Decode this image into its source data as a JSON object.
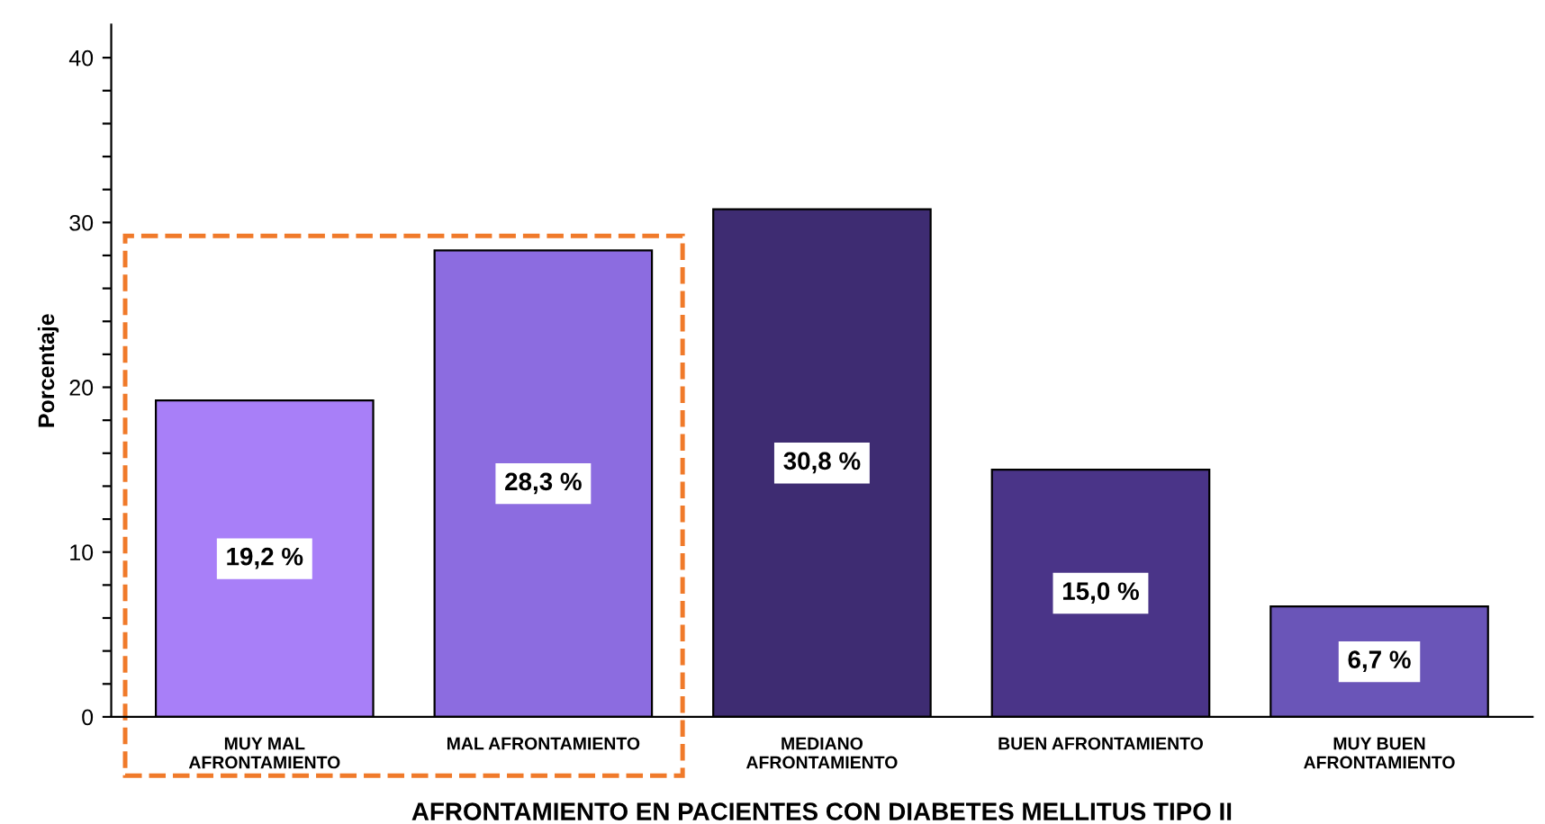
{
  "chart_data": {
    "type": "bar",
    "xlabel": "AFRONTAMIENTO EN PACIENTES CON DIABETES MELLITUS TIPO II",
    "ylabel": "Porcentaje",
    "categories": [
      "MUY MAL\nAFRONTAMIENTO",
      "MAL AFRONTAMIENTO",
      "MEDIANO\nAFRONTAMIENTO",
      "BUEN AFRONTAMIENTO",
      "MUY BUEN\nAFRONTAMIENTO"
    ],
    "values": [
      19.2,
      28.3,
      30.8,
      15.0,
      6.7
    ],
    "value_labels": [
      "19,2 %",
      "28,3 %",
      "30,8 %",
      "15,0 %",
      "6,7 %"
    ],
    "colors": [
      "#a87ff8",
      "#8c6ce0",
      "#3e2c72",
      "#4a3488",
      "#6a55b8"
    ],
    "ylim": [
      0,
      42
    ],
    "yticks": [
      0,
      {
        "value": 2,
        "label": null
      },
      {
        "value": 4,
        "label": null
      },
      {
        "value": 6,
        "label": null
      },
      {
        "value": 8,
        "label": null
      },
      10,
      {
        "value": 12,
        "label": null
      },
      {
        "value": 14,
        "label": null
      },
      {
        "value": 16,
        "label": null
      },
      {
        "value": 18,
        "label": null
      },
      20,
      {
        "value": 22,
        "label": null
      },
      {
        "value": 24,
        "label": null
      },
      {
        "value": 26,
        "label": null
      },
      {
        "value": 28,
        "label": null
      },
      30,
      {
        "value": 32,
        "label": null
      },
      {
        "value": 34,
        "label": null
      },
      {
        "value": 36,
        "label": null
      },
      {
        "value": 38,
        "label": null
      },
      40
    ],
    "grid": false,
    "legend": false
  }
}
